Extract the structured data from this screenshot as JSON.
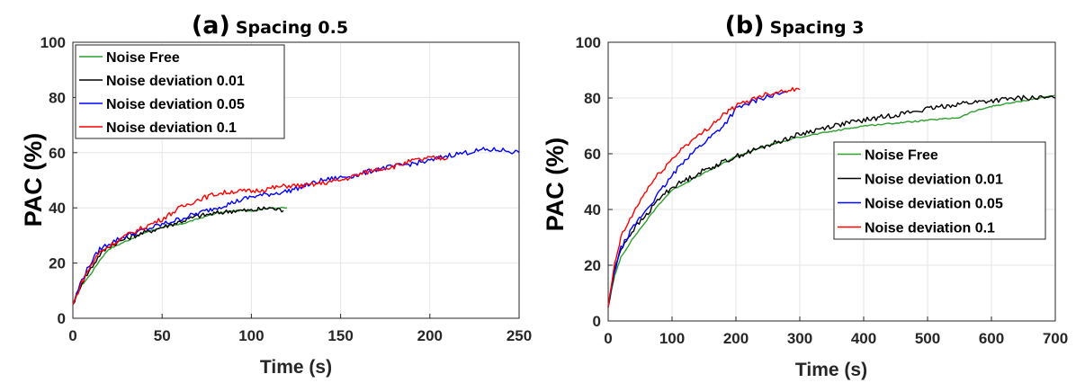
{
  "chart_data": [
    {
      "type": "line",
      "title_main": "(a)",
      "title_sub": "Spacing 0.5",
      "xlabel": "Time (s)",
      "ylabel": "PAC (%)",
      "xlim": [
        0,
        250
      ],
      "ylim": [
        0,
        100
      ],
      "xticks": [
        0,
        50,
        100,
        150,
        200,
        250
      ],
      "yticks": [
        0,
        20,
        40,
        60,
        80,
        100
      ],
      "grid": true,
      "legend_position": "top-left",
      "series": [
        {
          "name": "Noise Free",
          "color": "#2ca02c",
          "x": [
            0,
            5,
            10,
            15,
            20,
            30,
            40,
            50,
            60,
            70,
            80,
            90,
            100,
            110,
            120
          ],
          "y": [
            5,
            12,
            16,
            21,
            25,
            28,
            31,
            33,
            34,
            36,
            38,
            39,
            39,
            40,
            40
          ]
        },
        {
          "name": "Noise deviation 0.01",
          "color": "#000000",
          "x": [
            0,
            5,
            10,
            15,
            20,
            30,
            40,
            50,
            60,
            70,
            80,
            90,
            100,
            110,
            118
          ],
          "y": [
            5,
            13,
            18,
            23,
            26,
            29,
            31,
            33,
            35,
            37,
            38,
            39,
            39,
            40,
            39
          ]
        },
        {
          "name": "Noise deviation 0.05",
          "color": "#0000ff",
          "x": [
            0,
            5,
            10,
            15,
            20,
            30,
            40,
            50,
            60,
            70,
            80,
            90,
            100,
            110,
            120,
            130,
            140,
            150,
            160,
            170,
            180,
            190,
            200,
            210,
            220,
            230,
            240,
            250
          ],
          "y": [
            5,
            14,
            20,
            25,
            27,
            30,
            32,
            34,
            36,
            38,
            40,
            42,
            44,
            45,
            46,
            48,
            50,
            51,
            52,
            54,
            55,
            56,
            57,
            59,
            60,
            61,
            61,
            60
          ]
        },
        {
          "name": "Noise deviation 0.1",
          "color": "#ff0000",
          "x": [
            0,
            5,
            10,
            15,
            20,
            30,
            40,
            50,
            60,
            70,
            80,
            90,
            100,
            110,
            120,
            130,
            140,
            150,
            160,
            170,
            180,
            190,
            200,
            210
          ],
          "y": [
            5,
            13,
            19,
            24,
            26,
            30,
            33,
            36,
            40,
            43,
            45,
            46,
            46,
            47,
            48,
            48,
            49,
            50,
            52,
            54,
            55,
            57,
            58,
            58
          ]
        }
      ]
    },
    {
      "type": "line",
      "title_main": "(b)",
      "title_sub": "Spacing 3",
      "xlabel": "Time (s)",
      "ylabel": "PAC (%)",
      "xlim": [
        0,
        700
      ],
      "ylim": [
        0,
        100
      ],
      "xticks": [
        0,
        100,
        200,
        300,
        400,
        500,
        600,
        700
      ],
      "yticks": [
        0,
        20,
        40,
        60,
        80,
        100
      ],
      "grid": true,
      "legend_position": "center-right",
      "series": [
        {
          "name": "Noise Free",
          "color": "#2ca02c",
          "x": [
            0,
            10,
            20,
            40,
            60,
            80,
            100,
            150,
            200,
            250,
            300,
            350,
            400,
            450,
            500,
            550,
            570,
            600,
            650,
            700
          ],
          "y": [
            5,
            16,
            23,
            30,
            36,
            42,
            47,
            53,
            59,
            63,
            66,
            68,
            70,
            71,
            72,
            73,
            75,
            77,
            79,
            81
          ]
        },
        {
          "name": "Noise deviation 0.01",
          "color": "#000000",
          "x": [
            0,
            10,
            20,
            40,
            60,
            80,
            100,
            150,
            200,
            250,
            300,
            350,
            400,
            450,
            500,
            550,
            600,
            650,
            700
          ],
          "y": [
            5,
            18,
            26,
            33,
            38,
            44,
            48,
            54,
            59,
            63,
            67,
            70,
            72,
            74,
            76,
            78,
            79,
            80,
            80
          ]
        },
        {
          "name": "Noise deviation 0.05",
          "color": "#0000ff",
          "x": [
            0,
            10,
            20,
            40,
            60,
            80,
            100,
            120,
            140,
            160,
            180,
            200,
            220,
            240,
            260,
            280
          ],
          "y": [
            5,
            18,
            26,
            34,
            40,
            46,
            52,
            58,
            62,
            66,
            70,
            76,
            78,
            80,
            81,
            82
          ]
        },
        {
          "name": "Noise deviation 0.1",
          "color": "#ff0000",
          "x": [
            0,
            10,
            20,
            40,
            60,
            80,
            100,
            120,
            140,
            160,
            180,
            200,
            220,
            240,
            260,
            280,
            300
          ],
          "y": [
            5,
            20,
            30,
            39,
            47,
            53,
            58,
            63,
            66,
            70,
            74,
            77,
            79,
            81,
            82,
            83,
            83
          ]
        }
      ]
    }
  ]
}
